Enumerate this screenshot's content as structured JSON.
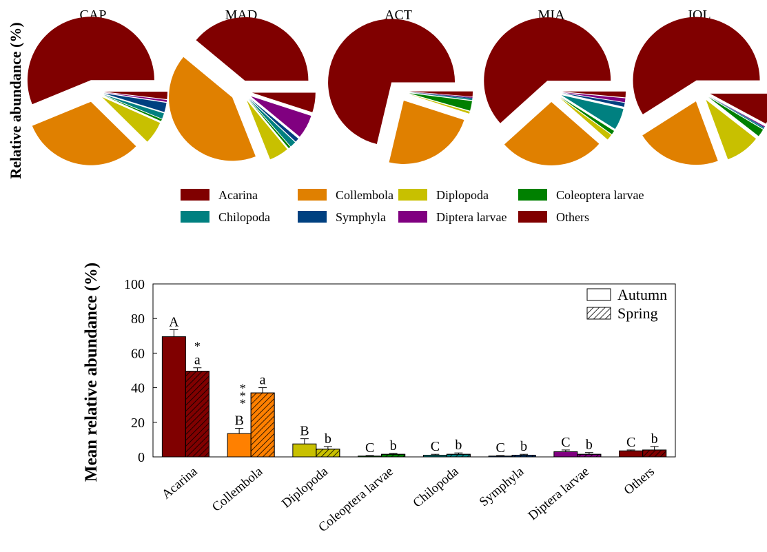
{
  "colors": {
    "acarina": "#800000",
    "collembola": "#E08000",
    "collembola_bar": "#FF8000",
    "diplopoda": "#C8C000",
    "coleoptera": "#008000",
    "chilopoda": "#008080",
    "symphyla": "#004080",
    "diptera": "#800080",
    "others": "#800000"
  },
  "chart_data": [
    {
      "type": "pie",
      "ylabel": "Relative abundance (%)",
      "legend": {
        "placement": "bottom",
        "entries": [
          {
            "name": "Acarina",
            "color_key": "acarina"
          },
          {
            "name": "Collembola",
            "color_key": "collembola"
          },
          {
            "name": "Diplopoda",
            "color_key": "diplopoda"
          },
          {
            "name": "Coleoptera larvae",
            "color_key": "coleoptera"
          },
          {
            "name": "Chilopoda",
            "color_key": "chilopoda"
          },
          {
            "name": "Symphyla",
            "color_key": "symphyla"
          },
          {
            "name": "Diptera larvae",
            "color_key": "diptera"
          },
          {
            "name": "Others",
            "color_key": "others"
          }
        ]
      },
      "pies": [
        {
          "title": "CAP",
          "values": [
            59,
            33,
            6,
            0.5,
            1.5,
            2.5,
            0.5,
            2
          ]
        },
        {
          "title": "MAD",
          "values": [
            39,
            42,
            5,
            0.5,
            1.5,
            1,
            6,
            5
          ]
        },
        {
          "title": "ACT",
          "values": [
            72,
            24,
            0.5,
            2.5,
            0.3,
            0.2,
            0.2,
            1.3
          ]
        },
        {
          "title": "MIA",
          "values": [
            62,
            27,
            1.5,
            1,
            5.5,
            1,
            1,
            1.5
          ]
        },
        {
          "title": "IOL",
          "values": [
            60,
            22,
            9,
            2,
            0.3,
            0.2,
            0.2,
            8
          ]
        }
      ]
    },
    {
      "type": "bar",
      "categories": [
        "Acarina",
        "Collembola",
        "Diplopoda",
        "Coleoptera larvae",
        "Chilopoda",
        "Symphyla",
        "Diptera larvae",
        "Others"
      ],
      "color_keys": [
        "acarina",
        "collembola_bar",
        "diplopoda",
        "coleoptera",
        "chilopoda",
        "symphyla",
        "diptera",
        "others"
      ],
      "ylabel": "Mean relative abundance (%)",
      "xlabel": "",
      "ylim": [
        0,
        100
      ],
      "yticks": [
        0,
        20,
        40,
        60,
        80,
        100
      ],
      "legend_placement": "top-right",
      "series": [
        {
          "name": "Autumn",
          "pattern": "solid",
          "values": [
            69.5,
            13.5,
            7.5,
            0.5,
            1.0,
            0.5,
            3.0,
            3.5
          ],
          "errors": [
            4.0,
            3.0,
            3.0,
            0.3,
            0.5,
            0.3,
            1.0,
            0.5
          ],
          "letters": [
            "A",
            "B",
            "B",
            "C",
            "C",
            "C",
            "C",
            "C"
          ]
        },
        {
          "name": "Spring",
          "pattern": "hatched",
          "values": [
            49.5,
            37.0,
            4.5,
            1.5,
            1.5,
            1.0,
            1.5,
            4.0
          ],
          "errors": [
            2.0,
            3.0,
            1.5,
            0.5,
            0.8,
            0.5,
            1.0,
            2.0
          ],
          "letters": [
            "a",
            "a",
            "b",
            "b",
            "b",
            "b",
            "b",
            "b"
          ]
        }
      ],
      "significance": [
        {
          "category": "Acarina",
          "stars": "*"
        },
        {
          "category": "Collembola",
          "stars": "***"
        }
      ]
    }
  ]
}
